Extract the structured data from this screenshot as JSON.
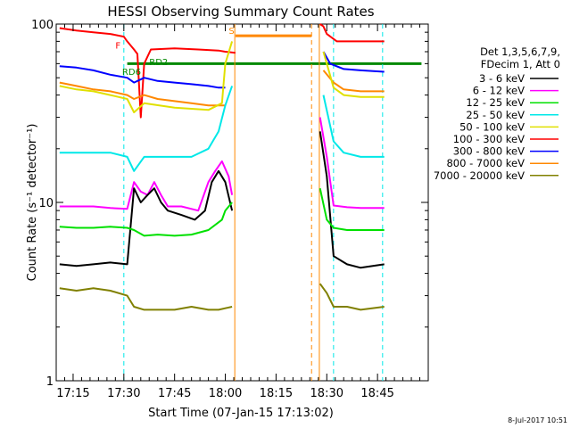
{
  "chart_data": {
    "type": "line",
    "title": "HESSI Observing Summary Count Rates",
    "xlabel": "Start Time (07-Jan-15 17:13:02)",
    "ylabel": "Count Rate (s⁻¹ detector⁻¹)",
    "x_range_min": [
      10,
      120
    ],
    "y_range": [
      1,
      100
    ],
    "y_scale": "log",
    "x_ticks": [
      {
        "t": 15,
        "label": "17:15"
      },
      {
        "t": 30,
        "label": "17:30"
      },
      {
        "t": 45,
        "label": "17:45"
      },
      {
        "t": 60,
        "label": "18:00"
      },
      {
        "t": 75,
        "label": "18:15"
      },
      {
        "t": 90,
        "label": "18:30"
      },
      {
        "t": 105,
        "label": "18:45"
      }
    ],
    "y_ticks": [
      {
        "v": 1,
        "label": "1"
      },
      {
        "v": 10,
        "label": "10"
      },
      {
        "v": 100,
        "label": "100"
      }
    ],
    "legend": {
      "position": "right",
      "header": [
        "Det 1,3,5,6,7,9,",
        "FDecim 1, Att 0"
      ],
      "entries": [
        {
          "label": "3 - 6 keV",
          "color": "#000000"
        },
        {
          "label": "6 - 12 keV",
          "color": "#ff00ff"
        },
        {
          "label": "12 - 25 keV",
          "color": "#00e000"
        },
        {
          "label": "25 - 50 keV",
          "color": "#00e8e8"
        },
        {
          "label": "50 - 100 keV",
          "color": "#e0e000"
        },
        {
          "label": "100 - 300 keV",
          "color": "#ff0000"
        },
        {
          "label": "300 - 800 keV",
          "color": "#0000ff"
        },
        {
          "label": "800 - 7000 keV",
          "color": "#ff8800"
        },
        {
          "label": "7000 - 20000 keV",
          "color": "#808000"
        }
      ]
    },
    "series": [
      {
        "name": "100 - 300 keV",
        "color": "#ff0000",
        "points": [
          [
            11,
            95
          ],
          [
            16,
            92
          ],
          [
            21,
            90
          ],
          [
            26,
            88
          ],
          [
            30,
            85
          ],
          [
            31,
            80
          ],
          [
            33,
            72
          ],
          [
            34,
            68
          ],
          [
            35,
            30
          ],
          [
            36,
            60
          ],
          [
            38,
            72
          ],
          [
            45,
            73
          ],
          [
            52,
            72
          ],
          [
            58,
            71
          ],
          [
            60,
            70
          ],
          [
            63,
            69
          ],
          [
            null,
            null
          ],
          [
            88,
            100
          ],
          [
            89,
            97
          ],
          [
            90,
            88
          ],
          [
            93,
            80
          ],
          [
            100,
            80
          ],
          [
            107,
            80
          ]
        ]
      },
      {
        "name": "300 - 800 keV",
        "color": "#0000ff",
        "points": [
          [
            11,
            58
          ],
          [
            16,
            57
          ],
          [
            21,
            55
          ],
          [
            26,
            52
          ],
          [
            31,
            50
          ],
          [
            33,
            47
          ],
          [
            36,
            50
          ],
          [
            40,
            48
          ],
          [
            45,
            47
          ],
          [
            50,
            46
          ],
          [
            55,
            45
          ],
          [
            58,
            44
          ],
          [
            60,
            44
          ],
          [
            null,
            null
          ],
          [
            89,
            70
          ],
          [
            91,
            60
          ],
          [
            95,
            56
          ],
          [
            100,
            55
          ],
          [
            107,
            54
          ]
        ]
      },
      {
        "name": "800 - 7000 keV",
        "color": "#ff8800",
        "points": [
          [
            11,
            47
          ],
          [
            16,
            45
          ],
          [
            21,
            43
          ],
          [
            26,
            42
          ],
          [
            31,
            40
          ],
          [
            33,
            38
          ],
          [
            36,
            40
          ],
          [
            40,
            38
          ],
          [
            45,
            37
          ],
          [
            50,
            36
          ],
          [
            55,
            35
          ],
          [
            58,
            35
          ],
          [
            60,
            35
          ],
          [
            null,
            null
          ],
          [
            89,
            55
          ],
          [
            92,
            47
          ],
          [
            95,
            43
          ],
          [
            100,
            42
          ],
          [
            107,
            42
          ]
        ]
      },
      {
        "name": "50 - 100 keV",
        "color": "#e0e000",
        "points": [
          [
            11,
            45
          ],
          [
            16,
            43
          ],
          [
            21,
            42
          ],
          [
            26,
            40
          ],
          [
            31,
            38
          ],
          [
            33,
            32
          ],
          [
            36,
            36
          ],
          [
            45,
            34
          ],
          [
            55,
            33
          ],
          [
            59,
            36
          ],
          [
            60,
            60
          ],
          [
            62,
            80
          ],
          [
            null,
            null
          ],
          [
            89,
            70
          ],
          [
            92,
            44
          ],
          [
            95,
            40
          ],
          [
            100,
            39
          ],
          [
            107,
            39
          ]
        ]
      },
      {
        "name": "25 - 50 keV",
        "color": "#00e8e8",
        "points": [
          [
            11,
            19
          ],
          [
            16,
            19
          ],
          [
            21,
            19
          ],
          [
            26,
            19
          ],
          [
            31,
            18
          ],
          [
            33,
            15
          ],
          [
            36,
            18
          ],
          [
            40,
            18
          ],
          [
            45,
            18
          ],
          [
            50,
            18
          ],
          [
            55,
            20
          ],
          [
            58,
            25
          ],
          [
            60,
            35
          ],
          [
            62,
            45
          ],
          [
            null,
            null
          ],
          [
            89,
            40
          ],
          [
            92,
            22
          ],
          [
            95,
            19
          ],
          [
            100,
            18
          ],
          [
            107,
            18
          ]
        ]
      },
      {
        "name": "6 - 12 keV",
        "color": "#ff00ff",
        "points": [
          [
            11,
            9.5
          ],
          [
            16,
            9.5
          ],
          [
            21,
            9.5
          ],
          [
            26,
            9.3
          ],
          [
            31,
            9.2
          ],
          [
            33,
            13
          ],
          [
            35,
            11.5
          ],
          [
            37,
            11
          ],
          [
            39,
            13
          ],
          [
            41,
            11
          ],
          [
            43,
            9.5
          ],
          [
            47,
            9.5
          ],
          [
            52,
            9
          ],
          [
            55,
            13
          ],
          [
            57,
            15
          ],
          [
            59,
            17
          ],
          [
            61,
            14
          ],
          [
            62,
            11
          ],
          [
            null,
            null
          ],
          [
            88,
            30
          ],
          [
            90,
            18
          ],
          [
            92,
            9.6
          ],
          [
            96,
            9.4
          ],
          [
            100,
            9.3
          ],
          [
            107,
            9.3
          ]
        ]
      },
      {
        "name": "3 - 6 keV",
        "color": "#000000",
        "points": [
          [
            11,
            4.5
          ],
          [
            16,
            4.4
          ],
          [
            21,
            4.5
          ],
          [
            26,
            4.6
          ],
          [
            31,
            4.5
          ],
          [
            33,
            12
          ],
          [
            35,
            10
          ],
          [
            37,
            11
          ],
          [
            39,
            12
          ],
          [
            41,
            10
          ],
          [
            43,
            9
          ],
          [
            47,
            8.5
          ],
          [
            51,
            8
          ],
          [
            54,
            9
          ],
          [
            56,
            13
          ],
          [
            58,
            15
          ],
          [
            60,
            13
          ],
          [
            62,
            9
          ],
          [
            null,
            null
          ],
          [
            88,
            25
          ],
          [
            90,
            14
          ],
          [
            92,
            5
          ],
          [
            96,
            4.5
          ],
          [
            100,
            4.3
          ],
          [
            107,
            4.5
          ]
        ]
      },
      {
        "name": "12 - 25 keV",
        "color": "#00e000",
        "points": [
          [
            11,
            7.3
          ],
          [
            16,
            7.2
          ],
          [
            21,
            7.2
          ],
          [
            26,
            7.3
          ],
          [
            31,
            7.2
          ],
          [
            33,
            7
          ],
          [
            36,
            6.5
          ],
          [
            40,
            6.6
          ],
          [
            45,
            6.5
          ],
          [
            50,
            6.6
          ],
          [
            55,
            7
          ],
          [
            59,
            8
          ],
          [
            60,
            9
          ],
          [
            62,
            10
          ],
          [
            null,
            null
          ],
          [
            88,
            12
          ],
          [
            90,
            8
          ],
          [
            92,
            7.2
          ],
          [
            96,
            7
          ],
          [
            100,
            7
          ],
          [
            107,
            7
          ]
        ]
      },
      {
        "name": "7000 - 20000 keV",
        "color": "#808000",
        "points": [
          [
            11,
            3.3
          ],
          [
            16,
            3.2
          ],
          [
            21,
            3.3
          ],
          [
            26,
            3.2
          ],
          [
            31,
            3.0
          ],
          [
            33,
            2.6
          ],
          [
            36,
            2.5
          ],
          [
            40,
            2.5
          ],
          [
            45,
            2.5
          ],
          [
            50,
            2.6
          ],
          [
            55,
            2.5
          ],
          [
            58,
            2.5
          ],
          [
            62,
            2.6
          ],
          [
            null,
            null
          ],
          [
            88,
            3.5
          ],
          [
            90,
            3.1
          ],
          [
            92,
            2.6
          ],
          [
            96,
            2.6
          ],
          [
            100,
            2.5
          ],
          [
            107,
            2.6
          ]
        ]
      }
    ],
    "reference_lines": [
      {
        "y": 60,
        "x_min": [
          31,
          118
        ],
        "color": "#008800",
        "style": "solid"
      }
    ],
    "vertical_lines": [
      {
        "t": 30,
        "color": "#00e8e8",
        "style": "dashed"
      },
      {
        "t": 92,
        "color": "#00e8e8",
        "style": "dashed"
      },
      {
        "t": 106.5,
        "color": "#00e8e8",
        "style": "dashed"
      },
      {
        "t": 62.8,
        "color": "#ff8800",
        "style": "solid"
      },
      {
        "t": 85.5,
        "color": "#ff8800",
        "style": "dashed"
      },
      {
        "t": 87.8,
        "color": "#ff8800",
        "style": "solid"
      }
    ],
    "horizontal_bars": [
      {
        "x_min": [
          63,
          85.5
        ],
        "y": 86,
        "color": "#ff8800"
      }
    ],
    "annotations": [
      {
        "text": "F",
        "t": 27.5,
        "y": 73,
        "color": "#ff0000"
      },
      {
        "text": "RD2",
        "t": 37.5,
        "y": 59,
        "color": "#008800"
      },
      {
        "text": "RD6",
        "t": 29.5,
        "y": 52,
        "color": "#008800"
      },
      {
        "text": "S",
        "t": 61,
        "y": 88,
        "color": "#ff8800"
      }
    ],
    "footer_stamp": "8-Jul-2017 10:51"
  }
}
